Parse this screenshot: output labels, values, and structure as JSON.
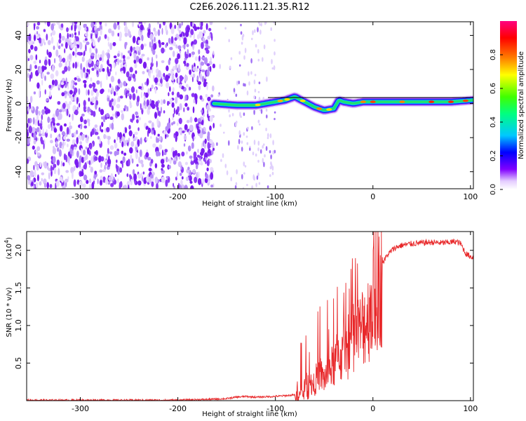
{
  "title": "C2E6.2026.111.21.35.R12",
  "colors": {
    "snr_line": "#e8282a",
    "axis": "#000000",
    "colormap": [
      "#ffffff",
      "#e4ccff",
      "#8000ff",
      "#0000ff",
      "#00c8ff",
      "#00ff80",
      "#80ff00",
      "#ffff00",
      "#ff8000",
      "#ff0000",
      "#ff0080"
    ]
  },
  "chart_data": [
    {
      "type": "heatmap",
      "name": "spectrogram",
      "title": "C2E6.2026.111.21.35.R12",
      "xlabel": "Height of straight line (km)",
      "ylabel": "Frequency (Hz)",
      "xlim": [
        -355,
        103
      ],
      "ylim": [
        -50,
        48
      ],
      "xticks": [
        -300,
        -200,
        -100,
        0,
        100
      ],
      "yticks": [
        -40,
        -20,
        0,
        20,
        40
      ],
      "noise_region": [
        -355,
        -163
      ],
      "ridge": {
        "x": [
          -163,
          -140,
          -120,
          -110,
          -100,
          -90,
          -80,
          -70,
          -60,
          -50,
          -40,
          -35,
          -30,
          -20,
          -10,
          0,
          20,
          40,
          60,
          80,
          103
        ],
        "y": [
          0,
          -1,
          -1,
          0,
          1,
          2,
          4,
          1,
          -2,
          -4,
          -3,
          2,
          1,
          0,
          1,
          1,
          1,
          1,
          1,
          1,
          2
        ]
      },
      "colorbar": {
        "label": "Normalized spectral amplitude",
        "range": [
          0,
          1
        ],
        "ticks": [
          "0.0",
          "0.2",
          "0.4",
          "0.6",
          "0.8"
        ]
      }
    },
    {
      "type": "line",
      "name": "snr",
      "xlabel": "Height of straight line (km)",
      "ylabel": "SNR (10 * v/v)",
      "yscale_label": "(x10",
      "yscale_exp": "4",
      "xlim": [
        -355,
        103
      ],
      "ylim": [
        0,
        2.25
      ],
      "xticks": [
        -300,
        -200,
        -100,
        0,
        100
      ],
      "yticks": [
        0.5,
        1.0,
        1.5,
        2.0
      ],
      "series": [
        {
          "name": "SNR",
          "x": [
            -355,
            -300,
            -250,
            -200,
            -170,
            -150,
            -140,
            -130,
            -120,
            -100,
            -90,
            -80,
            -75,
            -70,
            -65,
            -60,
            -55,
            -50,
            -45,
            -40,
            -35,
            -30,
            -25,
            -20,
            -15,
            -10,
            -5,
            0,
            5,
            10,
            15,
            20,
            25,
            30,
            40,
            50,
            60,
            70,
            80,
            85,
            90,
            95,
            100,
            103
          ],
          "y": [
            0.01,
            0.01,
            0.01,
            0.01,
            0.02,
            0.03,
            0.05,
            0.06,
            0.05,
            0.06,
            0.07,
            0.08,
            0.1,
            0.15,
            0.2,
            0.3,
            0.45,
            0.35,
            0.5,
            0.55,
            0.75,
            0.65,
            0.85,
            1.05,
            1.0,
            1.2,
            1.3,
            1.55,
            1.7,
            1.85,
            1.95,
            2.02,
            2.06,
            2.08,
            2.1,
            2.11,
            2.12,
            2.11,
            2.12,
            2.13,
            2.1,
            1.97,
            1.93,
            1.92
          ]
        }
      ]
    }
  ]
}
